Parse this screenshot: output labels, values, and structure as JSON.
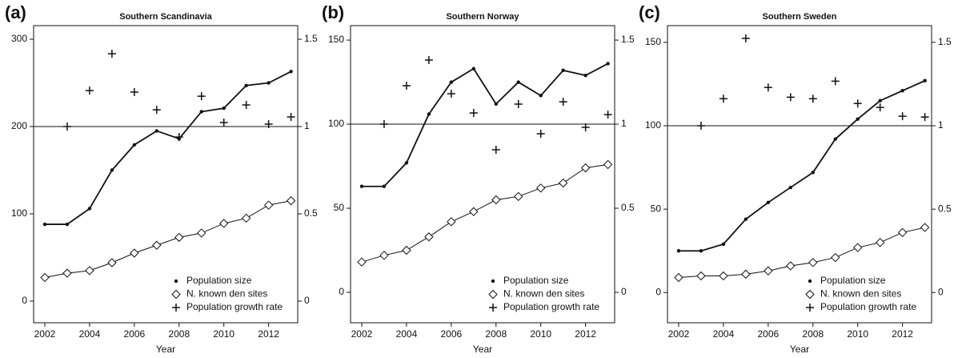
{
  "chart_data": [
    {
      "type": "line",
      "panel_label": "(a)",
      "title": "Southern Scandinavia",
      "x_label": "Year",
      "x": [
        2002,
        2003,
        2004,
        2005,
        2006,
        2007,
        2008,
        2009,
        2010,
        2011,
        2012,
        2013
      ],
      "xlim": [
        2001.5,
        2013.3
      ],
      "xticks": [
        2002,
        2004,
        2006,
        2008,
        2010,
        2012
      ],
      "ylim": [
        -24.8,
        315.6
      ],
      "yticks": [
        0,
        100,
        200,
        300
      ],
      "y2lim": [
        -0.124,
        1.578
      ],
      "y2ticks": [
        0,
        0.5,
        1,
        1.5
      ],
      "hline": {
        "axis": "y2",
        "value": 1
      },
      "legend": "lower right",
      "series": [
        {
          "name": "Population size",
          "color": "#111111",
          "marker": "dot",
          "line": true,
          "values": [
            88,
            88,
            106,
            150,
            179,
            195,
            186,
            217,
            221,
            247,
            250,
            263
          ]
        },
        {
          "name": "N. known den sites",
          "color": "#111111",
          "marker": "diamond",
          "line": true,
          "values": [
            27,
            32,
            35,
            44,
            55,
            64,
            73,
            78,
            89,
            95,
            110,
            115
          ]
        },
        {
          "name": "Population growth rate",
          "color": "#111111",
          "marker": "plus",
          "line": false,
          "axis": "y2",
          "values": [
            null,
            1.0,
            1.206,
            1.417,
            1.197,
            1.096,
            0.94,
            1.174,
            1.023,
            1.124,
            1.014,
            1.055
          ]
        }
      ]
    },
    {
      "type": "line",
      "panel_label": "(b)",
      "title": "Southern Norway",
      "x_label": "Year",
      "x": [
        2002,
        2003,
        2004,
        2005,
        2006,
        2007,
        2008,
        2009,
        2010,
        2011,
        2012,
        2013
      ],
      "xlim": [
        2001.5,
        2013.3
      ],
      "xticks": [
        2002,
        2004,
        2006,
        2008,
        2010,
        2012
      ],
      "ylim": [
        -18.1,
        158.6
      ],
      "yticks": [
        0,
        50,
        100,
        150
      ],
      "y2lim": [
        -0.181,
        1.586
      ],
      "y2ticks": [
        0,
        0.5,
        1,
        1.5
      ],
      "hline": {
        "axis": "y2",
        "value": 1
      },
      "legend": "lower right",
      "series": [
        {
          "name": "Population size",
          "color": "#111111",
          "marker": "dot",
          "line": true,
          "values": [
            63,
            63,
            77,
            106,
            125,
            133,
            112,
            125,
            117,
            132,
            129,
            136
          ]
        },
        {
          "name": "N. known den sites",
          "color": "#111111",
          "marker": "diamond",
          "line": true,
          "values": [
            18,
            22,
            25,
            33,
            42,
            48,
            55,
            57,
            62,
            65,
            74,
            76
          ]
        },
        {
          "name": "Population growth rate",
          "color": "#111111",
          "marker": "plus",
          "line": false,
          "axis": "y2",
          "values": [
            null,
            1.0,
            1.229,
            1.381,
            1.181,
            1.067,
            0.848,
            1.119,
            0.943,
            1.133,
            0.981,
            1.057
          ]
        }
      ]
    },
    {
      "type": "line",
      "panel_label": "(c)",
      "title": "Southern Sweden",
      "x_label": "Year",
      "x": [
        2002,
        2003,
        2004,
        2005,
        2006,
        2007,
        2008,
        2009,
        2010,
        2011,
        2012,
        2013
      ],
      "xlim": [
        2001.5,
        2013.3
      ],
      "xticks": [
        2002,
        2004,
        2006,
        2008,
        2010,
        2012
      ],
      "ylim": [
        -18.1,
        160
      ],
      "yticks": [
        0,
        50,
        100,
        150
      ],
      "y2lim": [
        -0.181,
        1.6
      ],
      "y2ticks": [
        0,
        0.5,
        1,
        1.5
      ],
      "hline": {
        "axis": "y2",
        "value": 1
      },
      "legend": "lower right",
      "series": [
        {
          "name": "Population size",
          "color": "#111111",
          "marker": "dot",
          "line": true,
          "values": [
            25,
            25,
            29,
            44,
            54,
            63,
            72,
            92,
            104,
            115,
            121,
            127
          ]
        },
        {
          "name": "N. known den sites",
          "color": "#111111",
          "marker": "diamond",
          "line": true,
          "values": [
            9,
            10,
            10,
            11,
            13,
            16,
            18,
            21,
            27,
            30,
            36,
            39
          ]
        },
        {
          "name": "Population growth rate",
          "color": "#111111",
          "marker": "plus",
          "line": false,
          "axis": "y2",
          "values": [
            null,
            1.0,
            1.162,
            1.524,
            1.229,
            1.171,
            1.162,
            1.267,
            1.133,
            1.11,
            1.057,
            1.052
          ]
        }
      ]
    }
  ]
}
